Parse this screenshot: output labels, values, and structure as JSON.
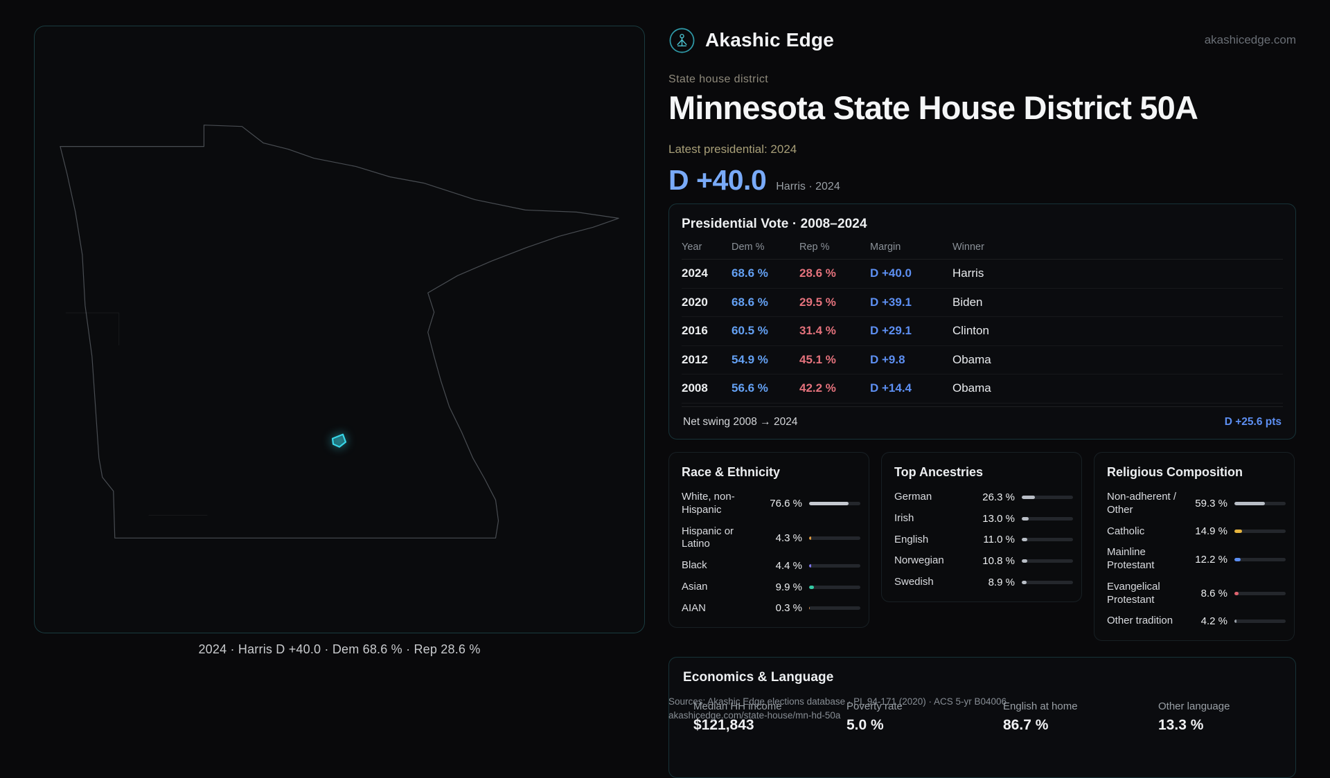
{
  "header": {
    "brand": "Akashic Edge",
    "site_url": "akashicedge.com"
  },
  "map": {
    "caption": "2024 · Harris D +40.0 · Dem 68.6 % · Rep 28.6 %"
  },
  "profile": {
    "kicker": "State house district",
    "title": "Minnesota State House District 50A",
    "latest_label": "Latest presidential: 2024",
    "margin_big": "D +40.0",
    "margin_context": "Harris · 2024"
  },
  "presidential": {
    "title": "Presidential Vote · 2008–2024",
    "columns": [
      "Year",
      "Dem %",
      "Rep %",
      "Margin",
      "Winner"
    ],
    "rows": [
      {
        "year": "2024",
        "dem": "68.6 %",
        "rep": "28.6 %",
        "margin": "D +40.0",
        "winner": "Harris"
      },
      {
        "year": "2020",
        "dem": "68.6 %",
        "rep": "29.5 %",
        "margin": "D +39.1",
        "winner": "Biden"
      },
      {
        "year": "2016",
        "dem": "60.5 %",
        "rep": "31.4 %",
        "margin": "D +29.1",
        "winner": "Clinton"
      },
      {
        "year": "2012",
        "dem": "54.9 %",
        "rep": "45.1 %",
        "margin": "D +9.8",
        "winner": "Obama"
      },
      {
        "year": "2008",
        "dem": "56.6 %",
        "rep": "42.2 %",
        "margin": "D +14.4",
        "winner": "Obama"
      }
    ],
    "net_swing_label": "Net swing 2008 → 2024",
    "net_swing_value": "D +25.6 pts"
  },
  "race": {
    "title": "Race & Ethnicity",
    "rows": [
      {
        "label": "White, non-Hispanic",
        "value": "76.6 %",
        "pct": 76.6,
        "color": "#c6cad1"
      },
      {
        "label": "Hispanic or Latino",
        "value": "4.3 %",
        "pct": 4.3,
        "color": "#e09b3d"
      },
      {
        "label": "Black",
        "value": "4.4 %",
        "pct": 4.4,
        "color": "#7d74ee"
      },
      {
        "label": "Asian",
        "value": "9.9 %",
        "pct": 9.9,
        "color": "#34c9a3"
      },
      {
        "label": "AIAN",
        "value": "0.3 %",
        "pct": 0.3,
        "color": "#d1813f"
      }
    ]
  },
  "ancestries": {
    "title": "Top Ancestries",
    "rows": [
      {
        "label": "German",
        "value": "26.3 %",
        "pct": 26.3,
        "color": "#b9bec6"
      },
      {
        "label": "Irish",
        "value": "13.0 %",
        "pct": 13.0,
        "color": "#b9bec6"
      },
      {
        "label": "English",
        "value": "11.0 %",
        "pct": 11.0,
        "color": "#b9bec6"
      },
      {
        "label": "Norwegian",
        "value": "10.8 %",
        "pct": 10.8,
        "color": "#b9bec6"
      },
      {
        "label": "Swedish",
        "value": "8.9 %",
        "pct": 8.9,
        "color": "#b9bec6"
      }
    ]
  },
  "religion": {
    "title": "Religious Composition",
    "rows": [
      {
        "label": "Non-adherent / Other",
        "value": "59.3 %",
        "pct": 59.3,
        "color": "#b9bec6"
      },
      {
        "label": "Catholic",
        "value": "14.9 %",
        "pct": 14.9,
        "color": "#e6b43e"
      },
      {
        "label": "Mainline Protestant",
        "value": "12.2 %",
        "pct": 12.2,
        "color": "#5b8ef2"
      },
      {
        "label": "Evangelical Protestant",
        "value": "8.6 %",
        "pct": 8.6,
        "color": "#e0636e"
      },
      {
        "label": "Other tradition",
        "value": "4.2 %",
        "pct": 4.2,
        "color": "#9aa0a8"
      }
    ]
  },
  "economics": {
    "title": "Economics & Language",
    "stats": [
      {
        "label": "Median HH income",
        "value": "$121,843"
      },
      {
        "label": "Poverty rate",
        "value": "5.0 %"
      },
      {
        "label": "English at home",
        "value": "86.7 %"
      },
      {
        "label": "Other language",
        "value": "13.3 %"
      }
    ]
  },
  "footer": {
    "sources": "Sources: Akashic Edge elections database · PL 94-171 (2020) · ACS 5-yr B04006",
    "permalink": "akashicedge.com/state-house/mn-hd-50a"
  }
}
